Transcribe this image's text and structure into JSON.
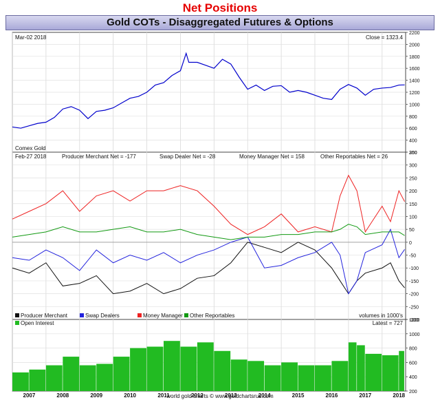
{
  "page": {
    "title": "Net Positions",
    "header": "Gold COTs - Disaggregated Futures & Options",
    "credit": "world gold charts © www.goldchartsrus.com"
  },
  "colors": {
    "price": "#0000cc",
    "producer": "#111111",
    "swap": "#2222dd",
    "money": "#ee2222",
    "other": "#119911",
    "oi": "#22bb22"
  },
  "chart_data": [
    {
      "type": "line",
      "panel": "price",
      "date_label": "Mar-02  2018",
      "close_label": "Close = 1323.4",
      "source_label": "Comex Gold",
      "ylim": [
        200,
        2200
      ],
      "yticks": [
        200,
        400,
        600,
        800,
        1000,
        1200,
        1400,
        1600,
        1800,
        2000,
        2200
      ],
      "x": [
        2006.5,
        2006.75,
        2007.0,
        2007.25,
        2007.5,
        2007.75,
        2008.0,
        2008.25,
        2008.5,
        2008.75,
        2009.0,
        2009.25,
        2009.5,
        2009.75,
        2010.0,
        2010.25,
        2010.5,
        2010.75,
        2011.0,
        2011.25,
        2011.5,
        2011.67,
        2011.75,
        2012.0,
        2012.25,
        2012.5,
        2012.75,
        2013.0,
        2013.25,
        2013.5,
        2013.75,
        2014.0,
        2014.25,
        2014.5,
        2014.75,
        2015.0,
        2015.25,
        2015.5,
        2015.75,
        2016.0,
        2016.25,
        2016.5,
        2016.75,
        2017.0,
        2017.25,
        2017.5,
        2017.75,
        2018.0,
        2018.17
      ],
      "series": [
        {
          "values": [
            620,
            600,
            640,
            680,
            700,
            780,
            920,
            960,
            900,
            760,
            880,
            900,
            940,
            1020,
            1100,
            1130,
            1200,
            1320,
            1360,
            1480,
            1560,
            1850,
            1700,
            1700,
            1650,
            1600,
            1750,
            1670,
            1450,
            1250,
            1320,
            1230,
            1300,
            1310,
            1200,
            1230,
            1200,
            1150,
            1100,
            1080,
            1250,
            1330,
            1270,
            1150,
            1250,
            1270,
            1280,
            1320,
            1323
          ]
        }
      ]
    },
    {
      "type": "line",
      "panel": "net_positions",
      "date_label": "Feb-27  2018",
      "latest_labels": [
        {
          "text": "Producer Merchant Net = -177",
          "key": "producer"
        },
        {
          "text": "Swap Dealer Net = -28",
          "key": "swap"
        },
        {
          "text": "Money Manager Net = 158",
          "key": "money"
        },
        {
          "text": "Other Reportables Net = 26",
          "key": "other"
        }
      ],
      "units_label": "volumes in 1000's",
      "ylim": [
        -300,
        350
      ],
      "yticks": [
        -300,
        -250,
        -200,
        -150,
        -100,
        -50,
        0,
        50,
        100,
        150,
        200,
        250,
        300,
        350
      ],
      "x": [
        2006.5,
        2007.0,
        2007.5,
        2008.0,
        2008.5,
        2009.0,
        2009.5,
        2010.0,
        2010.5,
        2011.0,
        2011.5,
        2012.0,
        2012.5,
        2013.0,
        2013.5,
        2014.0,
        2014.5,
        2015.0,
        2015.5,
        2016.0,
        2016.25,
        2016.5,
        2016.75,
        2017.0,
        2017.5,
        2017.75,
        2018.0,
        2018.17
      ],
      "series": [
        {
          "name": "Producer Merchant",
          "key": "producer",
          "values": [
            -100,
            -120,
            -80,
            -170,
            -160,
            -130,
            -200,
            -190,
            -160,
            -200,
            -180,
            -140,
            -130,
            -80,
            0,
            -20,
            -40,
            0,
            -30,
            -100,
            -150,
            -200,
            -150,
            -120,
            -100,
            -80,
            -150,
            -177
          ]
        },
        {
          "name": "Swap Dealers",
          "key": "swap",
          "values": [
            -60,
            -70,
            -30,
            -60,
            -110,
            -30,
            -80,
            -50,
            -70,
            -40,
            -80,
            -50,
            -30,
            0,
            20,
            -100,
            -90,
            -60,
            -40,
            0,
            -50,
            -200,
            -150,
            -40,
            -10,
            50,
            -60,
            -28
          ]
        },
        {
          "name": "Money Manager",
          "key": "money",
          "values": [
            90,
            120,
            150,
            200,
            120,
            180,
            200,
            160,
            200,
            200,
            220,
            200,
            140,
            70,
            30,
            60,
            110,
            40,
            60,
            40,
            180,
            260,
            200,
            40,
            140,
            80,
            200,
            158
          ]
        },
        {
          "name": "Other Reportables",
          "key": "other",
          "values": [
            20,
            30,
            40,
            60,
            40,
            40,
            50,
            60,
            40,
            40,
            50,
            30,
            20,
            10,
            20,
            20,
            30,
            30,
            40,
            40,
            50,
            70,
            60,
            30,
            40,
            40,
            40,
            26
          ]
        }
      ]
    },
    {
      "type": "bar",
      "panel": "open_interest",
      "name": "Open Interest",
      "latest_label": "Latest = 727",
      "ylim": [
        200,
        1200
      ],
      "yticks": [
        200,
        400,
        600,
        800,
        1000,
        1200
      ],
      "x": [
        2006.5,
        2007.0,
        2007.5,
        2008.0,
        2008.5,
        2009.0,
        2009.5,
        2010.0,
        2010.5,
        2011.0,
        2011.5,
        2012.0,
        2012.5,
        2013.0,
        2013.5,
        2014.0,
        2014.5,
        2015.0,
        2015.5,
        2016.0,
        2016.5,
        2016.75,
        2017.0,
        2017.5,
        2018.0,
        2018.17
      ],
      "values": [
        460,
        500,
        560,
        680,
        560,
        580,
        680,
        800,
        820,
        900,
        820,
        880,
        760,
        640,
        620,
        560,
        600,
        560,
        560,
        620,
        880,
        840,
        720,
        700,
        760,
        727
      ]
    }
  ],
  "x_axis": {
    "years": [
      "2007",
      "2008",
      "2009",
      "2010",
      "2011",
      "2012",
      "2013",
      "2014",
      "2015",
      "2016",
      "2017",
      "2018"
    ],
    "xlim": [
      2006.5,
      2018.2
    ]
  }
}
